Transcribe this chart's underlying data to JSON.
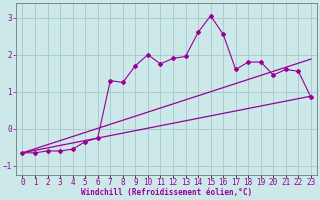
{
  "xlabel": "Windchill (Refroidissement éolien,°C)",
  "bg_color": "#cce8e8",
  "grid_color": "#aacccc",
  "line_color": "#990099",
  "x_data": [
    0,
    1,
    2,
    3,
    4,
    5,
    6,
    7,
    8,
    9,
    10,
    11,
    12,
    13,
    14,
    15,
    16,
    17,
    18,
    19,
    20,
    21,
    22,
    23
  ],
  "y_main": [
    -0.65,
    -0.65,
    -0.6,
    -0.6,
    -0.55,
    -0.35,
    -0.25,
    1.3,
    1.25,
    1.7,
    2.0,
    1.75,
    1.9,
    1.95,
    2.6,
    3.05,
    2.55,
    1.6,
    1.8,
    1.8,
    1.45,
    1.6,
    1.55,
    0.85
  ],
  "y_line1_start": -0.65,
  "y_line1_end": 1.88,
  "y_line2_start": -0.65,
  "y_line2_end": 0.88,
  "ylim": [
    -1.25,
    3.4
  ],
  "xlim": [
    -0.5,
    23.5
  ],
  "yticks": [
    -1,
    0,
    1,
    2,
    3
  ],
  "xticks": [
    0,
    1,
    2,
    3,
    4,
    5,
    6,
    7,
    8,
    9,
    10,
    11,
    12,
    13,
    14,
    15,
    16,
    17,
    18,
    19,
    20,
    21,
    22,
    23
  ],
  "tick_fontsize": 5.5,
  "xlabel_fontsize": 5.5
}
